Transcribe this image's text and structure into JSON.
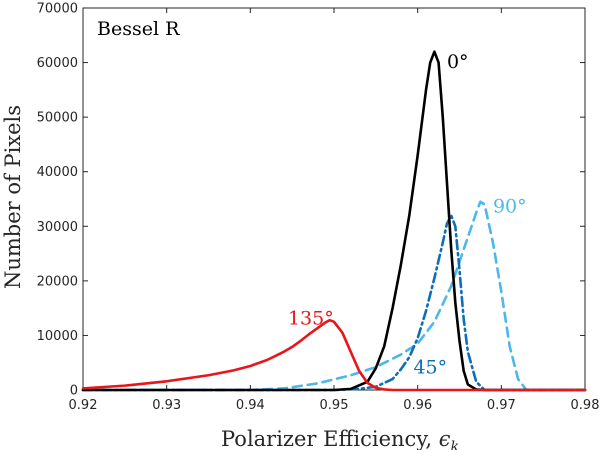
{
  "chart_data": {
    "type": "line",
    "title": "",
    "xlabel": "Polarizer Efficiency, ",
    "xlabel_symbol": "ϵ",
    "xlabel_subscript": "k",
    "ylabel": "Number of Pixels",
    "xlim": [
      0.92,
      0.98
    ],
    "ylim": [
      0,
      70000
    ],
    "x_ticks": [
      0.92,
      0.93,
      0.94,
      0.95,
      0.96,
      0.97,
      0.98
    ],
    "x_tick_labels": [
      "0.92",
      "0.93",
      "0.94",
      "0.95",
      "0.96",
      "0.97",
      "0.98"
    ],
    "y_ticks": [
      0,
      10000,
      20000,
      30000,
      40000,
      50000,
      60000,
      70000
    ],
    "y_tick_labels": [
      "0",
      "10000",
      "20000",
      "30000",
      "40000",
      "50000",
      "60000",
      "70000"
    ],
    "grid": false,
    "legend": "none",
    "annotations": [
      {
        "text": "Bessel R",
        "color": "#000000"
      },
      {
        "text": "0°",
        "color": "#000000",
        "x": 0.9635,
        "y": 59000
      },
      {
        "text": "90°",
        "color": "#4db8e8",
        "x": 0.969,
        "y": 32500
      },
      {
        "text": "45°",
        "color": "#0e6fb8",
        "x": 0.9595,
        "y": 3000
      },
      {
        "text": "135°",
        "color": "#e8161a",
        "x": 0.9445,
        "y": 12000
      }
    ],
    "series": [
      {
        "name": "0°",
        "color": "#000000",
        "style": "solid",
        "x": [
          0.92,
          0.95,
          0.952,
          0.954,
          0.955,
          0.956,
          0.957,
          0.958,
          0.959,
          0.96,
          0.961,
          0.9615,
          0.962,
          0.9625,
          0.963,
          0.9635,
          0.964,
          0.9645,
          0.965,
          0.9655,
          0.966,
          0.967,
          0.968,
          0.98
        ],
        "y": [
          0,
          0,
          200,
          1500,
          4000,
          8000,
          15000,
          23000,
          32000,
          43000,
          55000,
          60000,
          62000,
          60000,
          50000,
          38000,
          26000,
          16000,
          9000,
          3500,
          1000,
          100,
          0,
          0
        ]
      },
      {
        "name": "45°",
        "color": "#0e6fb8",
        "style": "dashdot",
        "x": [
          0.92,
          0.95,
          0.953,
          0.955,
          0.957,
          0.958,
          0.959,
          0.96,
          0.961,
          0.962,
          0.963,
          0.9635,
          0.964,
          0.9645,
          0.965,
          0.9655,
          0.966,
          0.967,
          0.968,
          0.98
        ],
        "y": [
          0,
          0,
          200,
          600,
          2000,
          3800,
          6000,
          9500,
          14500,
          20500,
          27000,
          30500,
          32000,
          30000,
          22000,
          13000,
          7000,
          1500,
          0,
          0
        ]
      },
      {
        "name": "90°",
        "color": "#4db8e8",
        "style": "dashed",
        "x": [
          0.92,
          0.94,
          0.944,
          0.948,
          0.952,
          0.955,
          0.958,
          0.96,
          0.962,
          0.964,
          0.965,
          0.966,
          0.967,
          0.9675,
          0.968,
          0.969,
          0.97,
          0.971,
          0.972,
          0.973,
          0.98
        ],
        "y": [
          0,
          0,
          300,
          1200,
          2700,
          4200,
          6500,
          8500,
          12500,
          19000,
          23500,
          28000,
          32500,
          34500,
          34000,
          27000,
          18000,
          8000,
          2000,
          0,
          0
        ]
      },
      {
        "name": "135°",
        "color": "#e8161a",
        "style": "solid",
        "x": [
          0.92,
          0.925,
          0.93,
          0.935,
          0.938,
          0.94,
          0.942,
          0.944,
          0.945,
          0.946,
          0.947,
          0.948,
          0.949,
          0.9495,
          0.95,
          0.951,
          0.952,
          0.953,
          0.954,
          0.955,
          0.956,
          0.957,
          0.98
        ],
        "y": [
          300,
          800,
          1600,
          2700,
          3600,
          4400,
          5500,
          7000,
          7900,
          9000,
          10200,
          11300,
          12400,
          12800,
          12500,
          10500,
          7000,
          3500,
          1300,
          400,
          100,
          0,
          0
        ]
      }
    ]
  }
}
